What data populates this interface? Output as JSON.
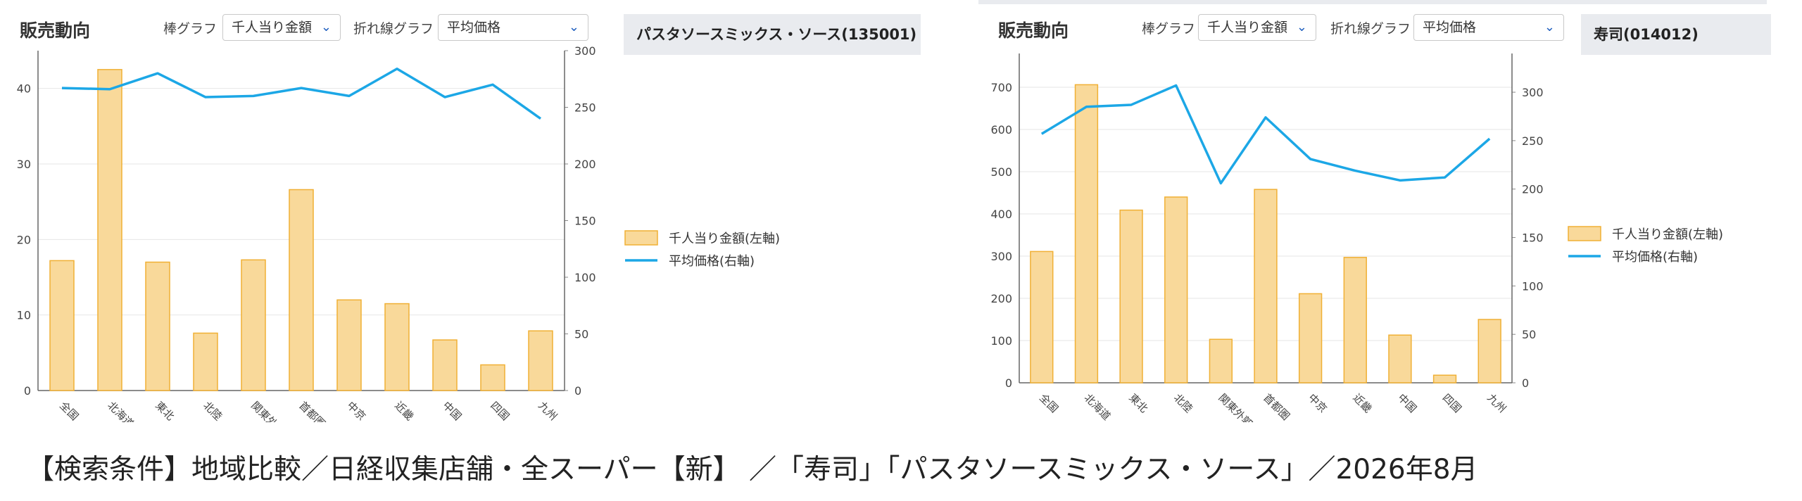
{
  "legend": {
    "bar": "千人当り金額(左軸)",
    "line": "平均価格(右軸)"
  },
  "controls": {
    "section_title": "販売動向",
    "bar_label": "棒グラフ",
    "bar_value": "千人当り金額",
    "line_label": "折れ線グラフ",
    "line_value": "平均価格",
    "chevron_icon": "chevron-down-icon"
  },
  "colors": {
    "bar_fill": "#f9d99a",
    "bar_stroke": "#f0b035",
    "line": "#1ca7e6",
    "panel_bg": "#e9ebef"
  },
  "caption": "【検索条件】地域比較／日経収集店舗・全スーパー【新】 ／「寿司」「パスタソースミックス・ソース」／2026年8月",
  "chart_data": [
    {
      "type": "bar",
      "product": "パスタソースミックス・ソース(135001)",
      "categories": [
        "全国",
        "北海道",
        "東北",
        "北陸",
        "関東外郭",
        "首都圏",
        "中京",
        "近畿",
        "中国",
        "四国",
        "九州"
      ],
      "series": [
        {
          "name": "千人当り金額(左軸)",
          "type": "bar",
          "axis": "left",
          "values": [
            17.2,
            42.5,
            17.0,
            7.6,
            17.3,
            26.6,
            12.0,
            11.5,
            6.7,
            3.4,
            7.9
          ]
        },
        {
          "name": "平均価格(右軸)",
          "type": "line",
          "axis": "right",
          "values": [
            267,
            266,
            280,
            259,
            260,
            267,
            260,
            284,
            259,
            270,
            240
          ]
        }
      ],
      "ylim": [
        0,
        45
      ],
      "yticks": [
        0,
        10,
        20,
        30,
        40
      ],
      "y2lim": [
        0,
        300
      ],
      "y2ticks": [
        0,
        50,
        100,
        150,
        200,
        250,
        300
      ],
      "grid": true,
      "legend_position": "right"
    },
    {
      "type": "bar",
      "product": "寿司(014012)",
      "categories": [
        "全国",
        "北海道",
        "東北",
        "北陸",
        "関東外郭",
        "首都圏",
        "中京",
        "近畿",
        "中国",
        "四国",
        "九州"
      ],
      "series": [
        {
          "name": "千人当り金額(左軸)",
          "type": "bar",
          "axis": "left",
          "values": [
            311,
            706,
            409,
            440,
            103,
            458,
            211,
            297,
            113,
            18,
            150
          ]
        },
        {
          "name": "平均価格(右軸)",
          "type": "line",
          "axis": "right",
          "values": [
            257,
            285,
            287,
            307,
            206,
            274,
            231,
            219,
            209,
            212,
            252
          ]
        }
      ],
      "ylim": [
        0,
        780
      ],
      "yticks": [
        0,
        100,
        200,
        300,
        400,
        500,
        600,
        700
      ],
      "y2lim": [
        0,
        340
      ],
      "y2ticks": [
        0,
        50,
        100,
        150,
        200,
        250,
        300
      ],
      "grid": true,
      "legend_position": "right"
    }
  ]
}
